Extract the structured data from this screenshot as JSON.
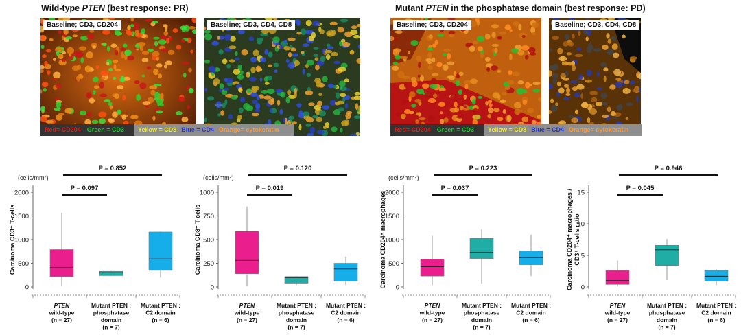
{
  "images": {
    "wildtype_header": {
      "pre": "Wild-type ",
      "gene": "PTEN",
      "post": " (best response: PR)"
    },
    "mutant_header": {
      "pre": "Mutant ",
      "gene": "PTEN",
      "post": " in the phosphatase domain (best response: PD)"
    },
    "panel_labels": [
      "Baseline; CD3, CD204",
      "Baseline; CD3, CD4, CD8",
      "Baseline; CD3, CD204",
      "Baseline; CD3, CD4, CD8"
    ],
    "legend_a": [
      {
        "text": "Red= CD204",
        "color": "#e0201b"
      },
      {
        "text": "Green = CD3",
        "color": "#22c83a"
      }
    ],
    "legend_b": [
      {
        "text": "Yellow = CD8",
        "color": "#f2ee2a"
      },
      {
        "text": "Blue = CD4",
        "color": "#2233dd"
      },
      {
        "text": "Orange= cytokeratin",
        "color": "#ff9a33"
      }
    ]
  },
  "categories": [
    {
      "name": "PTEN",
      "line2": "wild-type",
      "line3": "(n = 27)"
    },
    {
      "name": "Mutant PTEN :",
      "line2": "phosphatase",
      "line3": "domain",
      "line4": "(n = 7)"
    },
    {
      "name": "Mutant PTEN :",
      "line2": "C2 domain",
      "line3": "(n = 6)"
    }
  ],
  "chart_data": [
    {
      "type": "box",
      "units": "(cells/mm²)",
      "ylabel": "Carcinoma CD3⁺ T-cells",
      "ylim": [
        0,
        2000
      ],
      "ticks": [
        0,
        500,
        1000,
        1500,
        2000
      ],
      "tick_labels": [
        "0",
        "500",
        "1000",
        "1500",
        "2000"
      ],
      "colors": [
        "#ea1e8c",
        "#1fada5",
        "#16aee8"
      ],
      "boxes": [
        {
          "min": 20,
          "q1": 220,
          "median": 410,
          "q3": 790,
          "max": 1560
        },
        {
          "min": 230,
          "q1": 240,
          "median": 300,
          "q3": 330,
          "max": 340
        },
        {
          "min": 200,
          "q1": 350,
          "median": 590,
          "q3": 1160,
          "max": 1170
        }
      ],
      "pvalues": [
        {
          "text": "P = 0.097",
          "from": 0,
          "to": 1,
          "level": 1
        },
        {
          "text": "P = 0.852",
          "from": 0,
          "to": 2,
          "level": 2
        }
      ]
    },
    {
      "type": "box",
      "units": "(cells/mm²)",
      "ylabel": "Carcinoma CD8⁺ T-cells",
      "ylim": [
        0,
        1000
      ],
      "ticks": [
        0,
        250,
        500,
        750,
        1000
      ],
      "tick_labels": [
        "0",
        "250",
        "500",
        "750",
        "1000"
      ],
      "colors": [
        "#ea1e8c",
        "#1fada5",
        "#16aee8"
      ],
      "boxes": [
        {
          "min": 10,
          "q1": 140,
          "median": 280,
          "q3": 590,
          "max": 850
        },
        {
          "min": 20,
          "q1": 40,
          "median": 100,
          "q3": 110,
          "max": 115
        },
        {
          "min": 20,
          "q1": 60,
          "median": 190,
          "q3": 250,
          "max": 320
        }
      ],
      "pvalues": [
        {
          "text": "P = 0.019",
          "from": 0,
          "to": 1,
          "level": 1
        },
        {
          "text": "P = 0.120",
          "from": 0,
          "to": 2,
          "level": 2
        }
      ]
    },
    {
      "type": "box",
      "units": "(cells/mm²)",
      "ylabel": "Carcinoma CD204⁺ macrophages",
      "ylim": [
        0,
        2000
      ],
      "ticks": [
        0,
        500,
        1000,
        1500,
        2000
      ],
      "tick_labels": [
        "0",
        "500",
        "1000",
        "1500",
        "2000"
      ],
      "colors": [
        "#ea1e8c",
        "#1fada5",
        "#16aee8"
      ],
      "boxes": [
        {
          "min": 40,
          "q1": 230,
          "median": 430,
          "q3": 590,
          "max": 1080
        },
        {
          "min": 70,
          "q1": 600,
          "median": 730,
          "q3": 1030,
          "max": 1220
        },
        {
          "min": 230,
          "q1": 470,
          "median": 620,
          "q3": 760,
          "max": 1100
        }
      ],
      "pvalues": [
        {
          "text": "P = 0.037",
          "from": 0,
          "to": 1,
          "level": 1
        },
        {
          "text": "P = 0.223",
          "from": 0,
          "to": 2,
          "level": 2
        }
      ]
    },
    {
      "type": "box",
      "units": "",
      "ylabel": "Carcinoma CD204⁺ macrophages / CD3⁺ T-cells ratio",
      "ylim": [
        0,
        15
      ],
      "ticks": [
        0,
        5,
        10,
        15
      ],
      "tick_labels": [
        "0",
        "5",
        "10",
        "15"
      ],
      "colors": [
        "#ea1e8c",
        "#1fada5",
        "#16aee8"
      ],
      "boxes": [
        {
          "min": 0.1,
          "q1": 0.4,
          "median": 1.0,
          "q3": 2.6,
          "max": 4.2
        },
        {
          "min": 1.1,
          "q1": 3.4,
          "median": 5.9,
          "q3": 6.6,
          "max": 7.6
        },
        {
          "min": 0.3,
          "q1": 0.9,
          "median": 1.7,
          "q3": 2.6,
          "max": 2.8
        }
      ],
      "pvalues": [
        {
          "text": "P = 0.045",
          "from": 0,
          "to": 1,
          "level": 1
        },
        {
          "text": "P = 0.946",
          "from": 0,
          "to": 2,
          "level": 2
        }
      ]
    }
  ]
}
